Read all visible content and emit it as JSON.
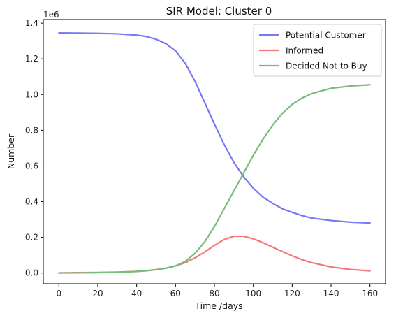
{
  "chart_data": {
    "type": "line",
    "title": "SIR Model: Cluster 0",
    "xlabel": "Time /days",
    "ylabel": "Number",
    "y_multiplier_label": "1e6",
    "xlim": [
      -8,
      168
    ],
    "ylim": [
      -0.06,
      1.42
    ],
    "x_ticks": [
      0,
      20,
      40,
      60,
      80,
      100,
      120,
      140,
      160
    ],
    "x_tick_labels": [
      "0",
      "20",
      "40",
      "60",
      "80",
      "100",
      "120",
      "140",
      "160"
    ],
    "y_ticks": [
      0.0,
      0.2,
      0.4,
      0.6,
      0.8,
      1.0,
      1.2,
      1.4
    ],
    "y_tick_labels": [
      "0.0",
      "0.2",
      "0.4",
      "0.6",
      "0.8",
      "1.0",
      "1.2",
      "1.4"
    ],
    "grid": false,
    "legend_position": "top-right",
    "x": [
      0,
      10,
      20,
      30,
      40,
      45,
      50,
      55,
      60,
      65,
      70,
      75,
      80,
      85,
      90,
      95,
      100,
      105,
      110,
      115,
      120,
      125,
      130,
      140,
      150,
      160
    ],
    "series": [
      {
        "name": "Potential Customer",
        "color": "#7878f5",
        "values": [
          1.345,
          1.344,
          1.343,
          1.34,
          1.333,
          1.325,
          1.31,
          1.285,
          1.245,
          1.175,
          1.075,
          0.955,
          0.835,
          0.72,
          0.62,
          0.54,
          0.475,
          0.425,
          0.39,
          0.36,
          0.34,
          0.322,
          0.308,
          0.294,
          0.285,
          0.28
        ]
      },
      {
        "name": "Informed",
        "color": "#f57878",
        "values": [
          0.001,
          0.002,
          0.003,
          0.005,
          0.009,
          0.013,
          0.019,
          0.027,
          0.04,
          0.058,
          0.085,
          0.118,
          0.155,
          0.188,
          0.206,
          0.206,
          0.192,
          0.17,
          0.145,
          0.12,
          0.096,
          0.075,
          0.058,
          0.034,
          0.02,
          0.012
        ]
      },
      {
        "name": "Decided Not to Buy",
        "color": "#78bc78",
        "values": [
          0.0,
          0.001,
          0.002,
          0.004,
          0.009,
          0.013,
          0.019,
          0.027,
          0.04,
          0.065,
          0.11,
          0.175,
          0.26,
          0.36,
          0.46,
          0.56,
          0.66,
          0.75,
          0.83,
          0.895,
          0.945,
          0.98,
          1.005,
          1.035,
          1.048,
          1.055
        ]
      }
    ]
  }
}
